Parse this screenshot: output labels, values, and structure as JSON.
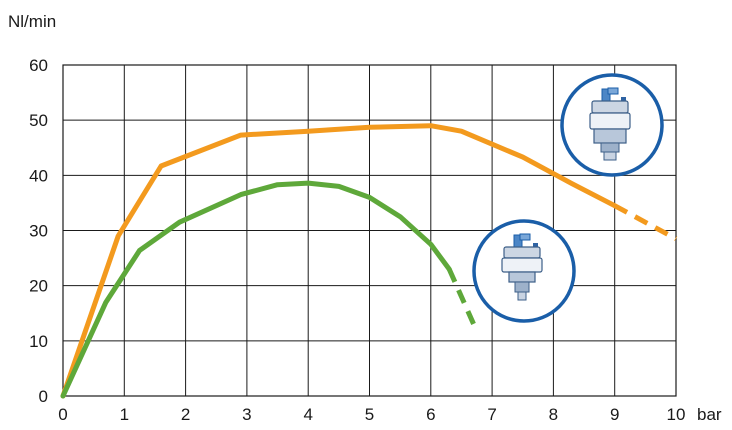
{
  "chart_data": {
    "type": "line",
    "ylabel": "Nl/min",
    "xlabel": "bar",
    "xlim": [
      0,
      10
    ],
    "ylim": [
      0,
      60
    ],
    "x_ticks": [
      0,
      1,
      2,
      3,
      4,
      5,
      6,
      7,
      8,
      9,
      10
    ],
    "y_ticks": [
      0,
      10,
      20,
      30,
      40,
      50,
      60
    ],
    "grid": true,
    "colors": {
      "orange": "#F39A1E",
      "green": "#5EA83A",
      "badge": "#1A5EA8"
    },
    "series": [
      {
        "color": "#F39A1E",
        "icon": "large-valve-icon",
        "solid": [
          [
            0,
            0
          ],
          [
            0.9,
            29
          ],
          [
            1.6,
            41.7
          ],
          [
            2.9,
            47.3
          ],
          [
            4,
            48
          ],
          [
            5,
            48.7
          ],
          [
            6,
            49
          ],
          [
            6.5,
            48
          ],
          [
            7.5,
            43.3
          ],
          [
            8.3,
            38.5
          ],
          [
            9,
            34.5
          ]
        ],
        "dashed": [
          [
            9,
            34.5
          ],
          [
            10,
            28.5
          ]
        ]
      },
      {
        "color": "#5EA83A",
        "icon": "small-valve-icon",
        "solid": [
          [
            0,
            0
          ],
          [
            0.7,
            17
          ],
          [
            1.25,
            26.4
          ],
          [
            1.9,
            31.5
          ],
          [
            2.9,
            36.5
          ],
          [
            3.5,
            38.3
          ],
          [
            4,
            38.6
          ],
          [
            4.5,
            38
          ],
          [
            5,
            36
          ],
          [
            5.5,
            32.5
          ],
          [
            6,
            27.5
          ],
          [
            6.3,
            23
          ]
        ],
        "dashed": [
          [
            6.3,
            23
          ],
          [
            6.7,
            13
          ]
        ]
      }
    ]
  }
}
